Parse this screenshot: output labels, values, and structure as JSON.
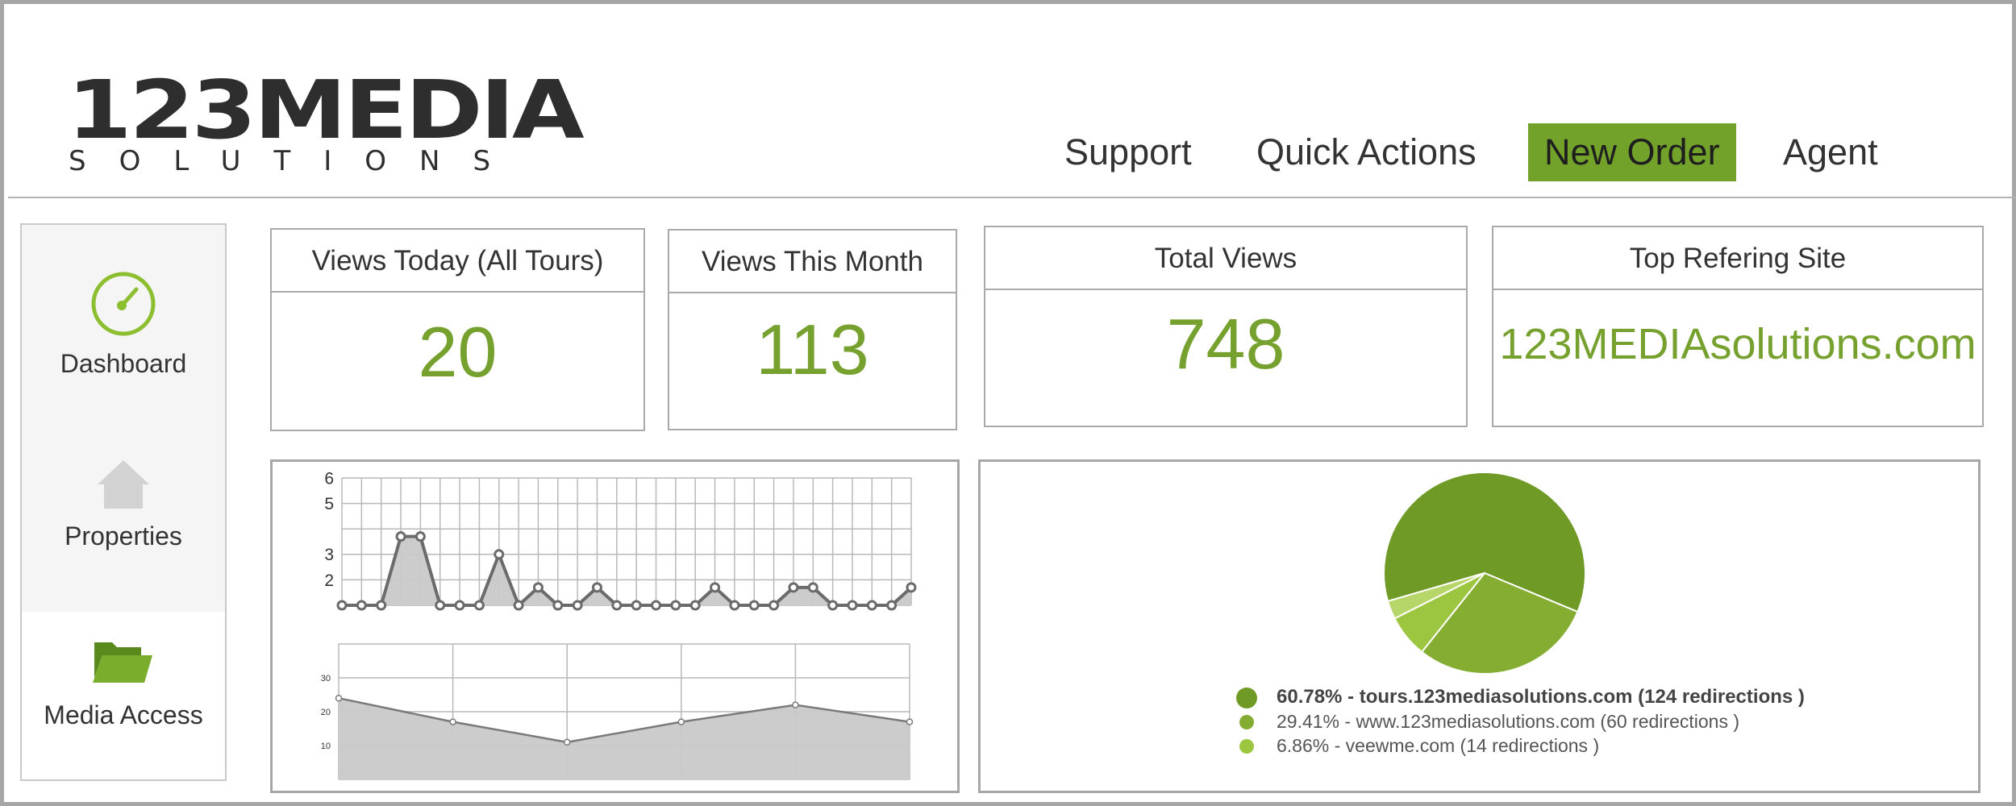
{
  "brand": {
    "name": "123MEDIA",
    "tagline": "SOLUTIONS"
  },
  "nav": [
    {
      "label": "Support"
    },
    {
      "label": "Quick Actions"
    },
    {
      "label": "New Order",
      "active": true
    },
    {
      "label": "Agent"
    }
  ],
  "sidebar": {
    "items": [
      {
        "label": "Dashboard",
        "icon": "gauge-icon"
      },
      {
        "label": "Properties",
        "icon": "house-icon"
      },
      {
        "label": "Media Access",
        "icon": "folder-icon"
      }
    ]
  },
  "stats": [
    {
      "label": "Views Today (All Tours)",
      "value": "20"
    },
    {
      "label": "Views This Month",
      "value": "113"
    },
    {
      "label": "Total Views",
      "value": "748"
    },
    {
      "label": "Top Refering Site",
      "value": "123MEDIAsolutions.com"
    }
  ],
  "colors": {
    "accent": "#73a22b",
    "value_text": "#76a12f",
    "pie": [
      "#6f9a26",
      "#85ad32",
      "#9cc63f"
    ]
  },
  "chart_data": [
    {
      "type": "area",
      "title": "",
      "xlabel": "",
      "ylabel": "",
      "yticks": [
        2,
        3,
        5,
        6
      ],
      "ylim": [
        1,
        6
      ],
      "grid": true,
      "x": [
        1,
        2,
        3,
        4,
        5,
        6,
        7,
        8,
        9,
        10,
        11,
        12,
        13,
        14,
        15,
        16,
        17,
        18,
        19,
        20,
        21,
        22,
        23,
        24,
        25,
        26,
        27,
        28,
        29,
        30
      ],
      "values": [
        1,
        1,
        1,
        3.7,
        3.7,
        1,
        1,
        1,
        3,
        1,
        1.7,
        1,
        1,
        1.7,
        1,
        1,
        1,
        1,
        1,
        1.7,
        1,
        1,
        1,
        1.7,
        1.7,
        1,
        1,
        1,
        1,
        1.7
      ]
    },
    {
      "type": "area",
      "title": "",
      "xlabel": "",
      "ylabel": "",
      "yticks": [
        10,
        20,
        30
      ],
      "ylim": [
        0,
        40
      ],
      "grid": true,
      "x": [
        1,
        2,
        3,
        4,
        5,
        6
      ],
      "values": [
        24,
        17,
        11,
        17,
        22,
        17
      ]
    },
    {
      "type": "pie",
      "title": "",
      "slices": [
        {
          "label": "60.78% - tours.123mediasolutions.com (124 redirections )",
          "value": 60.78
        },
        {
          "label": "29.41% - www.123mediasolutions.com (60 redirections )",
          "value": 29.41
        },
        {
          "label": "6.86% - veewme.com (14 redirections )",
          "value": 6.86
        }
      ]
    }
  ]
}
